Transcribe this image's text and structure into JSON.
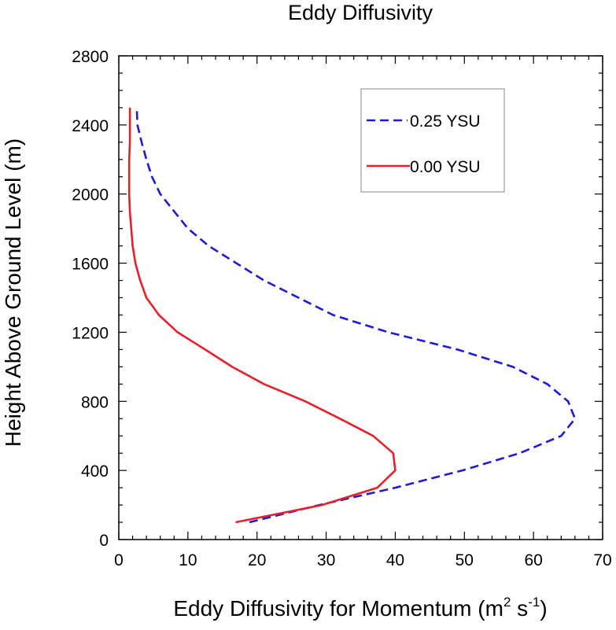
{
  "chart_data": {
    "type": "line",
    "title": "Eddy Diffusivity",
    "xlabel_main": "Eddy Diffusivity for Momentum (m",
    "xlabel_sup1": "2",
    "xlabel_mid": " s",
    "xlabel_sup2": "-1",
    "xlabel_end": ")",
    "ylabel": "Height Above Ground Level (m)",
    "xlim": [
      0,
      70
    ],
    "ylim": [
      0,
      2800
    ],
    "x_ticks": [
      0,
      10,
      20,
      30,
      40,
      50,
      60,
      70
    ],
    "y_ticks": [
      0,
      400,
      800,
      1200,
      1600,
      2000,
      2400,
      2800
    ],
    "x_tick_labels": [
      "0",
      "10",
      "20",
      "30",
      "40",
      "50",
      "60",
      "70"
    ],
    "y_tick_labels": [
      "0",
      "400",
      "800",
      "1200",
      "1600",
      "2000",
      "2400",
      "2800"
    ],
    "grid": false,
    "legend_position": "top-right",
    "series": [
      {
        "name": "0.25 YSU",
        "color": "#1c1cd6",
        "dash": "dashed",
        "points": [
          [
            18.9,
            100
          ],
          [
            29.0,
            200
          ],
          [
            40.0,
            300
          ],
          [
            49.7,
            400
          ],
          [
            58.0,
            500
          ],
          [
            64.0,
            600
          ],
          [
            66.0,
            700
          ],
          [
            65.0,
            800
          ],
          [
            62.0,
            900
          ],
          [
            57.0,
            1000
          ],
          [
            49.0,
            1100
          ],
          [
            39.0,
            1200
          ],
          [
            31.0,
            1300
          ],
          [
            26.0,
            1400
          ],
          [
            21.0,
            1500
          ],
          [
            17.0,
            1600
          ],
          [
            13.0,
            1700
          ],
          [
            10.0,
            1800
          ],
          [
            8.0,
            1900
          ],
          [
            6.0,
            2000
          ],
          [
            4.8,
            2100
          ],
          [
            4.0,
            2200
          ],
          [
            3.3,
            2300
          ],
          [
            2.7,
            2400
          ],
          [
            2.6,
            2500
          ]
        ]
      },
      {
        "name": "0.00 YSU",
        "color": "#e8202a",
        "dash": "solid",
        "points": [
          [
            16.9,
            100
          ],
          [
            29.4,
            200
          ],
          [
            37.4,
            300
          ],
          [
            40.0,
            400
          ],
          [
            39.7,
            500
          ],
          [
            36.8,
            600
          ],
          [
            32.0,
            700
          ],
          [
            27.0,
            800
          ],
          [
            21.0,
            900
          ],
          [
            16.4,
            1000
          ],
          [
            12.5,
            1100
          ],
          [
            8.5,
            1200
          ],
          [
            5.8,
            1300
          ],
          [
            4.0,
            1400
          ],
          [
            3.1,
            1500
          ],
          [
            2.4,
            1600
          ],
          [
            2.0,
            1700
          ],
          [
            1.8,
            1800
          ],
          [
            1.6,
            1900
          ],
          [
            1.5,
            2000
          ],
          [
            1.5,
            2100
          ],
          [
            1.5,
            2200
          ],
          [
            1.6,
            2300
          ],
          [
            1.6,
            2400
          ],
          [
            1.6,
            2500
          ]
        ]
      }
    ]
  }
}
